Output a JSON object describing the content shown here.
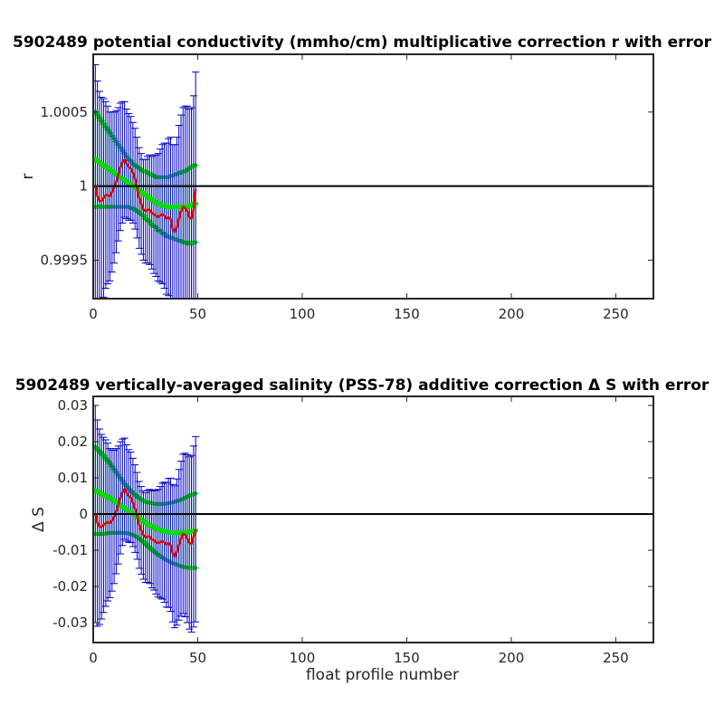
{
  "chart_data": [
    {
      "type": "line",
      "title": "5902489 potential conductivity (mmho/cm) multiplicative correction r with error",
      "xlabel": "",
      "ylabel": "r",
      "xlim": [
        0,
        268
      ],
      "ylim": [
        0.99924,
        1.00089
      ],
      "xticks": [
        0,
        50,
        100,
        150,
        200,
        250
      ],
      "xtick_labels": [
        "0",
        "50",
        "100",
        "150",
        "200",
        "250"
      ],
      "yticks": [
        0.9995,
        1.0,
        1.0005
      ],
      "ytick_labels": [
        "0.9995",
        "1",
        "1.0005"
      ],
      "reference_line": 1.0,
      "grid": false,
      "x": [
        1,
        2,
        3,
        4,
        5,
        6,
        7,
        8,
        9,
        10,
        11,
        12,
        13,
        14,
        15,
        16,
        17,
        18,
        19,
        20,
        21,
        22,
        23,
        24,
        25,
        26,
        27,
        28,
        29,
        30,
        31,
        32,
        33,
        34,
        35,
        36,
        37,
        38,
        39,
        40,
        41,
        42,
        43,
        44,
        45,
        46,
        47,
        48,
        49
      ],
      "series": [
        {
          "role": "corrected (red line) with blue error bars",
          "color": "#e00000",
          "errorbar_color": "#0000cc",
          "values": [
            1.0,
            0.99993,
            0.9999,
            0.9999,
            0.99992,
            0.99994,
            0.99994,
            0.99993,
            0.99996,
            0.99999,
            1.00003,
            1.00008,
            1.00013,
            1.00016,
            1.00018,
            1.00015,
            1.00013,
            1.00012,
            1.00009,
            1.00005,
            0.99999,
            0.99992,
            0.99988,
            0.99984,
            0.99983,
            0.99984,
            0.99984,
            0.99982,
            0.99981,
            0.9998,
            0.99979,
            0.9998,
            0.99981,
            0.9998,
            0.99978,
            0.99979,
            0.99978,
            0.99971,
            0.99969,
            0.99972,
            0.99978,
            0.99983,
            0.99986,
            0.99985,
            0.99983,
            0.99979,
            0.99978,
            0.99984,
            0.99998
          ],
          "errors": [
            0.00082,
            0.00078,
            0.00074,
            0.0007,
            0.00067,
            0.00063,
            0.0006,
            0.00057,
            0.00054,
            0.00051,
            0.00048,
            0.00045,
            0.00043,
            0.00041,
            0.00039,
            0.00037,
            0.00036,
            0.00035,
            0.00034,
            0.00034,
            0.00034,
            0.00034,
            0.00034,
            0.00034,
            0.00035,
            0.00036,
            0.00037,
            0.00038,
            0.0004,
            0.00041,
            0.00043,
            0.00045,
            0.00047,
            0.00049,
            0.00051,
            0.00053,
            0.00055,
            0.00057,
            0.00059,
            0.00061,
            0.00063,
            0.00065,
            0.00067,
            0.00069,
            0.00071,
            0.00073,
            0.00075,
            0.00077,
            0.00079
          ]
        },
        {
          "role": "fitted (green line with markers) with green error bars",
          "color": "#00dd00",
          "errorbar_color": "#00ee00",
          "values": [
            1.00018,
            1.00017,
            1.00016,
            1.00015,
            1.00014,
            1.00013,
            1.00012,
            1.00011,
            1.0001,
            1.00009,
            1.00008,
            1.00007,
            1.00006,
            1.00005,
            1.00004,
            1.00003,
            1.00002,
            1.00001,
            1.0,
            0.99999,
            0.99998,
            0.99997,
            0.99996,
            0.99995,
            0.99994,
            0.99993,
            0.99992,
            0.99991,
            0.9999,
            0.99989,
            0.99988,
            0.99988,
            0.99987,
            0.99987,
            0.99986,
            0.99986,
            0.99986,
            0.99986,
            0.99986,
            0.99986,
            0.99986,
            0.99986,
            0.99986,
            0.99986,
            0.99986,
            0.99987,
            0.99987,
            0.99988,
            0.99988
          ],
          "errors": [
            0.00032,
            0.00031,
            0.0003,
            0.00029,
            0.00028,
            0.00027,
            0.00026,
            0.00025,
            0.00024,
            0.00023,
            0.00022,
            0.00021,
            0.0002,
            0.00019,
            0.00018,
            0.00017,
            0.00016,
            0.00016,
            0.00015,
            0.00015,
            0.00015,
            0.00015,
            0.00015,
            0.00015,
            0.00016,
            0.00016,
            0.00016,
            0.00017,
            0.00017,
            0.00017,
            0.00018,
            0.00018,
            0.00019,
            0.00019,
            0.0002,
            0.0002,
            0.00021,
            0.00021,
            0.00022,
            0.00022,
            0.00023,
            0.00023,
            0.00024,
            0.00024,
            0.00025,
            0.00025,
            0.00026,
            0.00026,
            0.00026
          ]
        }
      ]
    },
    {
      "type": "line",
      "title": "5902489 vertically-averaged salinity (PSS-78) additive correction Δ S with error",
      "xlabel": "float profile number",
      "ylabel": "Δ S",
      "xlim": [
        0,
        268
      ],
      "ylim": [
        -0.0355,
        0.0325
      ],
      "xticks": [
        0,
        50,
        100,
        150,
        200,
        250
      ],
      "xtick_labels": [
        "0",
        "50",
        "100",
        "150",
        "200",
        "250"
      ],
      "yticks": [
        -0.03,
        -0.02,
        -0.01,
        0,
        0.01,
        0.02,
        0.03
      ],
      "ytick_labels": [
        "-0.03",
        "-0.02",
        "-0.01",
        "0",
        "0.01",
        "0.02",
        "0.03"
      ],
      "reference_line": 0,
      "grid": false,
      "x": [
        1,
        2,
        3,
        4,
        5,
        6,
        7,
        8,
        9,
        10,
        11,
        12,
        13,
        14,
        15,
        16,
        17,
        18,
        19,
        20,
        21,
        22,
        23,
        24,
        25,
        26,
        27,
        28,
        29,
        30,
        31,
        32,
        33,
        34,
        35,
        36,
        37,
        38,
        39,
        40,
        41,
        42,
        43,
        44,
        45,
        46,
        47,
        48,
        49
      ],
      "series": [
        {
          "role": "corrected (red line) with blue error bars",
          "color": "#e00000",
          "errorbar_color": "#0000cc",
          "values": [
            0.0,
            -0.0025,
            -0.0035,
            -0.0035,
            -0.003,
            -0.0025,
            -0.0022,
            -0.0025,
            -0.0018,
            -0.0008,
            0.0008,
            0.0025,
            0.0045,
            0.006,
            0.007,
            0.0058,
            0.005,
            0.0046,
            0.0032,
            0.0015,
            -0.0005,
            -0.003,
            -0.0045,
            -0.0058,
            -0.0065,
            -0.0062,
            -0.0062,
            -0.007,
            -0.0072,
            -0.0078,
            -0.008,
            -0.0078,
            -0.0075,
            -0.0078,
            -0.0085,
            -0.008,
            -0.0085,
            -0.0108,
            -0.0118,
            -0.0105,
            -0.0085,
            -0.0068,
            -0.0055,
            -0.0058,
            -0.0068,
            -0.008,
            -0.0082,
            -0.0062,
            -0.0042
          ],
          "errors": [
            0.03,
            0.0285,
            0.027,
            0.0255,
            0.0242,
            0.023,
            0.0218,
            0.0206,
            0.0195,
            0.0184,
            0.0173,
            0.0163,
            0.0155,
            0.0147,
            0.014,
            0.0133,
            0.0128,
            0.0125,
            0.0122,
            0.0121,
            0.012,
            0.012,
            0.0121,
            0.0122,
            0.0124,
            0.0127,
            0.013,
            0.0134,
            0.0138,
            0.0143,
            0.0148,
            0.0154,
            0.016,
            0.0166,
            0.0172,
            0.0178,
            0.0184,
            0.019,
            0.0196,
            0.0202,
            0.0208,
            0.0214,
            0.022,
            0.0226,
            0.0232,
            0.0238,
            0.0244,
            0.025,
            0.0256
          ]
        },
        {
          "role": "fitted (green line with markers) with green error bars",
          "color": "#00dd00",
          "errorbar_color": "#00ee00",
          "values": [
            0.0065,
            0.0062,
            0.0059,
            0.0056,
            0.0053,
            0.005,
            0.0047,
            0.0044,
            0.004,
            0.0036,
            0.0032,
            0.0028,
            0.0024,
            0.002,
            0.0016,
            0.0012,
            0.0008,
            0.0004,
            0.0,
            -0.0004,
            -0.0008,
            -0.0012,
            -0.0016,
            -0.002,
            -0.0024,
            -0.0028,
            -0.0031,
            -0.0034,
            -0.0037,
            -0.004,
            -0.0042,
            -0.0044,
            -0.0046,
            -0.0048,
            -0.0049,
            -0.005,
            -0.0051,
            -0.0052,
            -0.0052,
            -0.0052,
            -0.0052,
            -0.0052,
            -0.0052,
            -0.0051,
            -0.005,
            -0.0049,
            -0.0048,
            -0.0047,
            -0.0046
          ],
          "errors": [
            0.012,
            0.0117,
            0.0114,
            0.0111,
            0.0108,
            0.0104,
            0.01,
            0.0096,
            0.0092,
            0.0088,
            0.0084,
            0.008,
            0.0076,
            0.0072,
            0.0068,
            0.0065,
            0.0062,
            0.006,
            0.0058,
            0.0057,
            0.0056,
            0.0056,
            0.0056,
            0.0057,
            0.0058,
            0.006,
            0.0062,
            0.0064,
            0.0066,
            0.0068,
            0.007,
            0.0072,
            0.0074,
            0.0076,
            0.0078,
            0.008,
            0.0082,
            0.0084,
            0.0086,
            0.0088,
            0.009,
            0.0092,
            0.0094,
            0.0096,
            0.0098,
            0.01,
            0.0101,
            0.0102,
            0.0103
          ]
        }
      ]
    }
  ]
}
